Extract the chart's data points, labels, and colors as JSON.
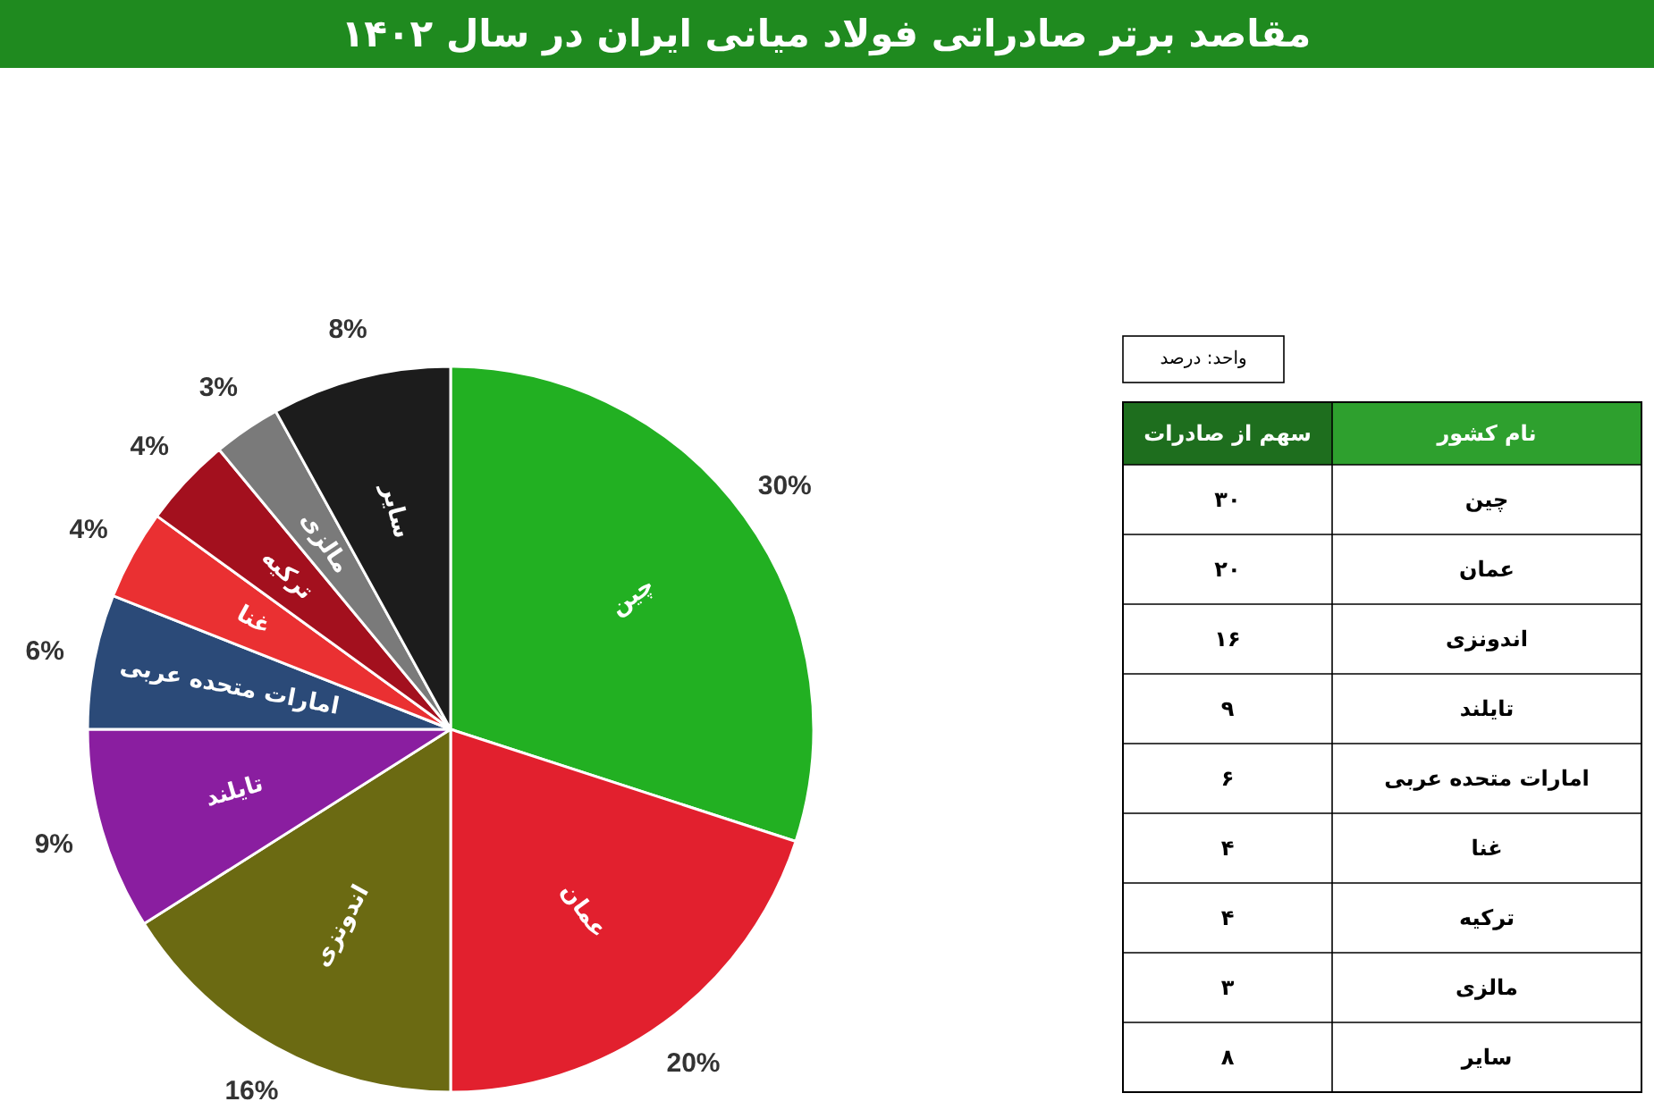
{
  "chart_data": {
    "type": "pie",
    "title": "مقاصد برتر صادراتی فولاد میانی ایران در سال ۱۴۰۲",
    "categories": [
      "چین",
      "عمان",
      "اندونزی",
      "تایلند",
      "امارات متحده عربی",
      "غنا",
      "ترکیه",
      "مالزی",
      "سایر"
    ],
    "values": [
      30,
      20,
      16,
      9,
      6,
      4,
      4,
      3,
      8
    ],
    "value_labels": [
      "30%",
      "20%",
      "16%",
      "9%",
      "6%",
      "4%",
      "4%",
      "3%",
      "8%"
    ],
    "colors": [
      "#22b022",
      "#e2202e",
      "#6b6a12",
      "#8a1ea0",
      "#2b4a78",
      "#ea3032",
      "#a3101e",
      "#7a7a7a",
      "#1c1c1c"
    ],
    "annotations": [
      "واحد: درصد",
      "سهم از صادرات",
      "نام کشور",
      "۳۰",
      "۲۰",
      "۱۶",
      "۹",
      "۶",
      "۴",
      "۴",
      "۳",
      "۸"
    ]
  }
}
